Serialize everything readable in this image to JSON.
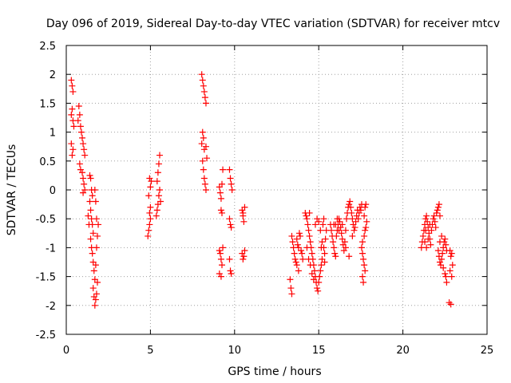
{
  "chart_data": {
    "type": "scatter",
    "title": "Day 096 of 2019, Sidereal Day-to-day VTEC variation (SDTVAR) for receiver mtcv",
    "xlabel": "GPS time / hours",
    "ylabel": "SDTVAR / TECUs",
    "xlim": [
      0,
      25
    ],
    "ylim": [
      -2.5,
      2.5
    ],
    "x_ticks": [
      0,
      5,
      10,
      15,
      20,
      25
    ],
    "x_tick_labels": [
      "0",
      "5",
      "10",
      "15",
      "20",
      "25"
    ],
    "y_ticks": [
      -2.5,
      -2,
      -1.5,
      -1,
      -0.5,
      0,
      0.5,
      1,
      1.5,
      2,
      2.5
    ],
    "y_tick_labels": [
      "-2.5",
      "-2",
      "-1.5",
      "-1",
      "-0.5",
      "0",
      "0.5",
      "1",
      "1.5",
      "2",
      "2.5"
    ],
    "grid": true,
    "marker": "+",
    "marker_color": "#ff0000",
    "series": [
      {
        "name": "SDTVAR",
        "points": [
          [
            0.3,
            1.9
          ],
          [
            0.35,
            1.8
          ],
          [
            0.4,
            1.7
          ],
          [
            0.35,
            1.4
          ],
          [
            0.3,
            1.3
          ],
          [
            0.4,
            1.2
          ],
          [
            0.45,
            1.1
          ],
          [
            0.3,
            0.8
          ],
          [
            0.4,
            0.7
          ],
          [
            0.35,
            0.6
          ],
          [
            0.75,
            1.45
          ],
          [
            0.8,
            1.3
          ],
          [
            0.7,
            1.2
          ],
          [
            0.85,
            1.1
          ],
          [
            0.9,
            1.0
          ],
          [
            0.95,
            0.9
          ],
          [
            1.0,
            0.8
          ],
          [
            1.05,
            0.7
          ],
          [
            1.1,
            0.6
          ],
          [
            0.8,
            0.45
          ],
          [
            0.85,
            0.35
          ],
          [
            0.95,
            0.3
          ],
          [
            1.0,
            0.2
          ],
          [
            1.05,
            0.1
          ],
          [
            1.1,
            0.0
          ],
          [
            1.0,
            -0.05
          ],
          [
            1.4,
            0.25
          ],
          [
            1.45,
            0.2
          ],
          [
            1.5,
            0.0
          ],
          [
            1.55,
            -0.1
          ],
          [
            1.4,
            -0.2
          ],
          [
            1.45,
            -0.35
          ],
          [
            1.5,
            -0.5
          ],
          [
            1.55,
            -0.6
          ],
          [
            1.6,
            -0.75
          ],
          [
            1.45,
            -0.85
          ],
          [
            1.5,
            -1.0
          ],
          [
            1.55,
            -1.1
          ],
          [
            1.6,
            -1.25
          ],
          [
            1.65,
            -1.4
          ],
          [
            1.7,
            -1.55
          ],
          [
            1.6,
            -1.7
          ],
          [
            1.65,
            -1.85
          ],
          [
            1.7,
            -2.0
          ],
          [
            1.75,
            -1.9
          ],
          [
            1.8,
            -1.8
          ],
          [
            1.85,
            -1.6
          ],
          [
            1.75,
            -1.3
          ],
          [
            1.8,
            -1.0
          ],
          [
            1.85,
            -0.8
          ],
          [
            1.9,
            -0.6
          ],
          [
            1.8,
            -0.5
          ],
          [
            1.75,
            -0.2
          ],
          [
            1.7,
            0.0
          ],
          [
            1.3,
            -0.45
          ],
          [
            1.35,
            -0.6
          ],
          [
            4.85,
            -0.8
          ],
          [
            4.9,
            -0.7
          ],
          [
            4.95,
            -0.6
          ],
          [
            5.0,
            -0.5
          ],
          [
            4.95,
            -0.4
          ],
          [
            5.0,
            -0.3
          ],
          [
            4.9,
            -0.1
          ],
          [
            5.0,
            0.05
          ],
          [
            5.05,
            0.15
          ],
          [
            4.95,
            0.2
          ],
          [
            5.35,
            -0.45
          ],
          [
            5.4,
            -0.35
          ],
          [
            5.45,
            -0.25
          ],
          [
            5.5,
            -0.1
          ],
          [
            5.55,
            0.0
          ],
          [
            5.4,
            0.15
          ],
          [
            5.45,
            0.3
          ],
          [
            5.5,
            0.45
          ],
          [
            5.55,
            0.6
          ],
          [
            5.6,
            -0.2
          ],
          [
            8.05,
            2.0
          ],
          [
            8.1,
            1.9
          ],
          [
            8.15,
            1.8
          ],
          [
            8.2,
            1.7
          ],
          [
            8.25,
            1.6
          ],
          [
            8.3,
            1.5
          ],
          [
            8.1,
            1.0
          ],
          [
            8.15,
            0.9
          ],
          [
            8.05,
            0.8
          ],
          [
            8.2,
            0.7
          ],
          [
            8.1,
            0.5
          ],
          [
            8.15,
            0.35
          ],
          [
            8.2,
            0.2
          ],
          [
            8.25,
            0.1
          ],
          [
            8.3,
            -0.0
          ],
          [
            8.35,
            0.55
          ],
          [
            8.3,
            0.75
          ],
          [
            9.1,
            0.05
          ],
          [
            9.15,
            -0.05
          ],
          [
            9.2,
            -0.15
          ],
          [
            9.25,
            0.1
          ],
          [
            9.3,
            0.35
          ],
          [
            9.2,
            -0.35
          ],
          [
            9.25,
            -0.4
          ],
          [
            9.1,
            -1.05
          ],
          [
            9.15,
            -1.1
          ],
          [
            9.2,
            -1.2
          ],
          [
            9.25,
            -1.3
          ],
          [
            9.1,
            -1.45
          ],
          [
            9.2,
            -1.5
          ],
          [
            9.3,
            -1.0
          ],
          [
            9.7,
            0.35
          ],
          [
            9.75,
            0.2
          ],
          [
            9.8,
            0.1
          ],
          [
            9.85,
            0.0
          ],
          [
            9.7,
            -0.5
          ],
          [
            9.75,
            -0.6
          ],
          [
            9.8,
            -0.65
          ],
          [
            9.7,
            -1.2
          ],
          [
            9.75,
            -1.4
          ],
          [
            9.8,
            -1.45
          ],
          [
            10.45,
            -0.35
          ],
          [
            10.5,
            -0.45
          ],
          [
            10.55,
            -0.55
          ],
          [
            10.6,
            -0.3
          ],
          [
            10.45,
            -1.1
          ],
          [
            10.5,
            -1.2
          ],
          [
            10.55,
            -1.15
          ],
          [
            10.6,
            -1.05
          ],
          [
            10.5,
            -0.4
          ],
          [
            13.3,
            -1.55
          ],
          [
            13.35,
            -1.7
          ],
          [
            13.4,
            -1.8
          ],
          [
            13.4,
            -0.8
          ],
          [
            13.45,
            -0.9
          ],
          [
            13.5,
            -1.0
          ],
          [
            13.55,
            -1.1
          ],
          [
            13.6,
            -1.2
          ],
          [
            13.65,
            -1.25
          ],
          [
            13.7,
            -0.85
          ],
          [
            13.75,
            -0.95
          ],
          [
            13.8,
            -1.0
          ],
          [
            13.85,
            -0.75
          ],
          [
            13.9,
            -0.8
          ],
          [
            13.95,
            -1.05
          ],
          [
            14.0,
            -1.1
          ],
          [
            14.05,
            -1.2
          ],
          [
            13.7,
            -1.3
          ],
          [
            13.8,
            -1.4
          ],
          [
            14.2,
            -0.4
          ],
          [
            14.25,
            -0.45
          ],
          [
            14.3,
            -0.5
          ],
          [
            14.35,
            -0.6
          ],
          [
            14.4,
            -0.7
          ],
          [
            14.45,
            -0.8
          ],
          [
            14.5,
            -0.9
          ],
          [
            14.55,
            -1.0
          ],
          [
            14.6,
            -1.1
          ],
          [
            14.65,
            -1.2
          ],
          [
            14.7,
            -1.3
          ],
          [
            14.75,
            -1.4
          ],
          [
            14.8,
            -1.5
          ],
          [
            14.85,
            -1.6
          ],
          [
            14.9,
            -1.7
          ],
          [
            14.95,
            -1.75
          ],
          [
            15.0,
            -1.6
          ],
          [
            15.05,
            -1.5
          ],
          [
            15.1,
            -1.4
          ],
          [
            15.15,
            -1.3
          ],
          [
            14.3,
            -1.0
          ],
          [
            14.4,
            -1.2
          ],
          [
            14.5,
            -1.3
          ],
          [
            14.6,
            -1.45
          ],
          [
            14.7,
            -1.55
          ],
          [
            14.8,
            -0.6
          ],
          [
            14.9,
            -0.5
          ],
          [
            15.0,
            -0.55
          ],
          [
            15.1,
            -0.7
          ],
          [
            15.2,
            -0.9
          ],
          [
            15.3,
            -1.0
          ],
          [
            15.35,
            -1.1
          ],
          [
            15.4,
            -0.85
          ],
          [
            15.45,
            -0.7
          ],
          [
            15.25,
            -0.6
          ],
          [
            15.3,
            -0.5
          ],
          [
            15.15,
            -1.0
          ],
          [
            15.2,
            -1.2
          ],
          [
            15.35,
            -1.25
          ],
          [
            14.45,
            -0.4
          ],
          [
            15.7,
            -0.6
          ],
          [
            15.75,
            -0.7
          ],
          [
            15.8,
            -0.8
          ],
          [
            15.85,
            -0.9
          ],
          [
            15.9,
            -1.0
          ],
          [
            15.95,
            -1.1
          ],
          [
            16.0,
            -1.15
          ],
          [
            16.05,
            -0.8
          ],
          [
            16.1,
            -0.7
          ],
          [
            16.15,
            -0.6
          ],
          [
            16.2,
            -0.5
          ],
          [
            16.25,
            -0.55
          ],
          [
            16.3,
            -0.65
          ],
          [
            16.35,
            -0.75
          ],
          [
            16.4,
            -0.85
          ],
          [
            16.45,
            -0.95
          ],
          [
            16.5,
            -1.05
          ],
          [
            16.55,
            -0.9
          ],
          [
            16.6,
            -0.7
          ],
          [
            16.65,
            -0.5
          ],
          [
            16.7,
            -0.4
          ],
          [
            16.75,
            -0.3
          ],
          [
            16.8,
            -0.25
          ],
          [
            16.85,
            -0.2
          ],
          [
            16.9,
            -0.3
          ],
          [
            16.95,
            -0.4
          ],
          [
            17.0,
            -0.5
          ],
          [
            17.05,
            -0.6
          ],
          [
            17.1,
            -0.7
          ],
          [
            17.15,
            -0.65
          ],
          [
            17.2,
            -0.55
          ],
          [
            17.25,
            -0.45
          ],
          [
            17.3,
            -0.35
          ],
          [
            17.35,
            -0.5
          ],
          [
            17.4,
            -0.4
          ],
          [
            17.45,
            -0.3
          ],
          [
            17.5,
            -0.35
          ],
          [
            17.55,
            -0.25
          ],
          [
            16.0,
            -0.6
          ],
          [
            16.2,
            -0.7
          ],
          [
            16.4,
            -0.6
          ],
          [
            16.6,
            -1.0
          ],
          [
            16.8,
            -1.15
          ],
          [
            17.0,
            -0.8
          ],
          [
            15.9,
            -0.6
          ],
          [
            16.1,
            -0.5
          ],
          [
            17.55,
            -1.0
          ],
          [
            17.6,
            -1.1
          ],
          [
            17.65,
            -1.2
          ],
          [
            17.7,
            -1.3
          ],
          [
            17.75,
            -1.4
          ],
          [
            17.6,
            -1.5
          ],
          [
            17.65,
            -1.6
          ],
          [
            17.7,
            -0.8
          ],
          [
            17.75,
            -0.7
          ],
          [
            17.8,
            -0.65
          ],
          [
            17.85,
            -0.55
          ],
          [
            17.7,
            -0.45
          ],
          [
            17.75,
            -0.3
          ],
          [
            17.8,
            -0.25
          ],
          [
            17.6,
            -0.9
          ],
          [
            21.1,
            -1.0
          ],
          [
            21.15,
            -0.9
          ],
          [
            21.2,
            -0.8
          ],
          [
            21.25,
            -0.7
          ],
          [
            21.3,
            -0.6
          ],
          [
            21.35,
            -0.5
          ],
          [
            21.4,
            -0.45
          ],
          [
            21.45,
            -0.55
          ],
          [
            21.5,
            -0.65
          ],
          [
            21.55,
            -0.75
          ],
          [
            21.6,
            -0.85
          ],
          [
            21.65,
            -0.95
          ],
          [
            21.7,
            -0.7
          ],
          [
            21.75,
            -0.6
          ],
          [
            21.8,
            -0.5
          ],
          [
            21.85,
            -0.45
          ],
          [
            21.9,
            -0.55
          ],
          [
            21.95,
            -0.65
          ],
          [
            22.0,
            -0.4
          ],
          [
            22.05,
            -0.35
          ],
          [
            22.1,
            -0.3
          ],
          [
            22.15,
            -0.25
          ],
          [
            22.2,
            -0.45
          ],
          [
            21.3,
            -0.9
          ],
          [
            21.4,
            -1.0
          ],
          [
            21.5,
            -0.85
          ],
          [
            21.35,
            -0.7
          ],
          [
            21.6,
            -0.6
          ],
          [
            22.1,
            -1.05
          ],
          [
            22.15,
            -1.15
          ],
          [
            22.2,
            -1.25
          ],
          [
            22.25,
            -1.3
          ],
          [
            22.3,
            -1.2
          ],
          [
            22.35,
            -1.1
          ],
          [
            22.4,
            -1.0
          ],
          [
            22.45,
            -0.9
          ],
          [
            22.5,
            -0.85
          ],
          [
            22.55,
            -0.95
          ],
          [
            22.6,
            -1.05
          ],
          [
            22.2,
            -0.9
          ],
          [
            22.3,
            -0.8
          ],
          [
            22.4,
            -1.35
          ],
          [
            22.5,
            -1.45
          ],
          [
            22.6,
            -1.6
          ],
          [
            22.55,
            -1.5
          ],
          [
            22.8,
            -1.05
          ],
          [
            22.85,
            -1.15
          ],
          [
            22.9,
            -1.1
          ],
          [
            22.95,
            -1.3
          ],
          [
            22.8,
            -1.4
          ],
          [
            22.9,
            -1.5
          ],
          [
            22.75,
            -1.95
          ],
          [
            22.85,
            -1.98
          ]
        ]
      }
    ]
  }
}
